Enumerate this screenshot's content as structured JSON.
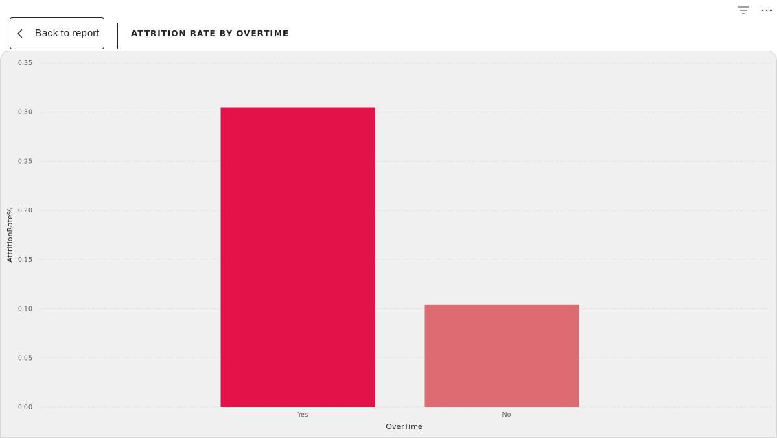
{
  "header": {
    "back_label": "Back to report",
    "title": "ATTRITION RATE BY OVERTIME"
  },
  "icons": {
    "back": "chevron-left-icon",
    "filter": "filter-icon",
    "more": "more-options-icon"
  },
  "colors": {
    "bar_yes": "#e3134a",
    "bar_no": "#de6b72",
    "panel_bg": "#f0f0f0",
    "gridline": "#d9d9d9"
  },
  "chart_data": {
    "type": "bar",
    "title": "ATTRITION RATE BY OVERTIME",
    "xlabel": "OverTime",
    "ylabel": "AttritionRate%",
    "categories": [
      "Yes",
      "No"
    ],
    "values": [
      0.305,
      0.104
    ],
    "ylim": [
      0,
      0.35
    ],
    "yticks": [
      "0.00",
      "0.05",
      "0.10",
      "0.15",
      "0.20",
      "0.25",
      "0.30",
      "0.35"
    ],
    "bar_colors": [
      "#e3134a",
      "#de6b72"
    ],
    "grid": true,
    "legend": "none"
  }
}
